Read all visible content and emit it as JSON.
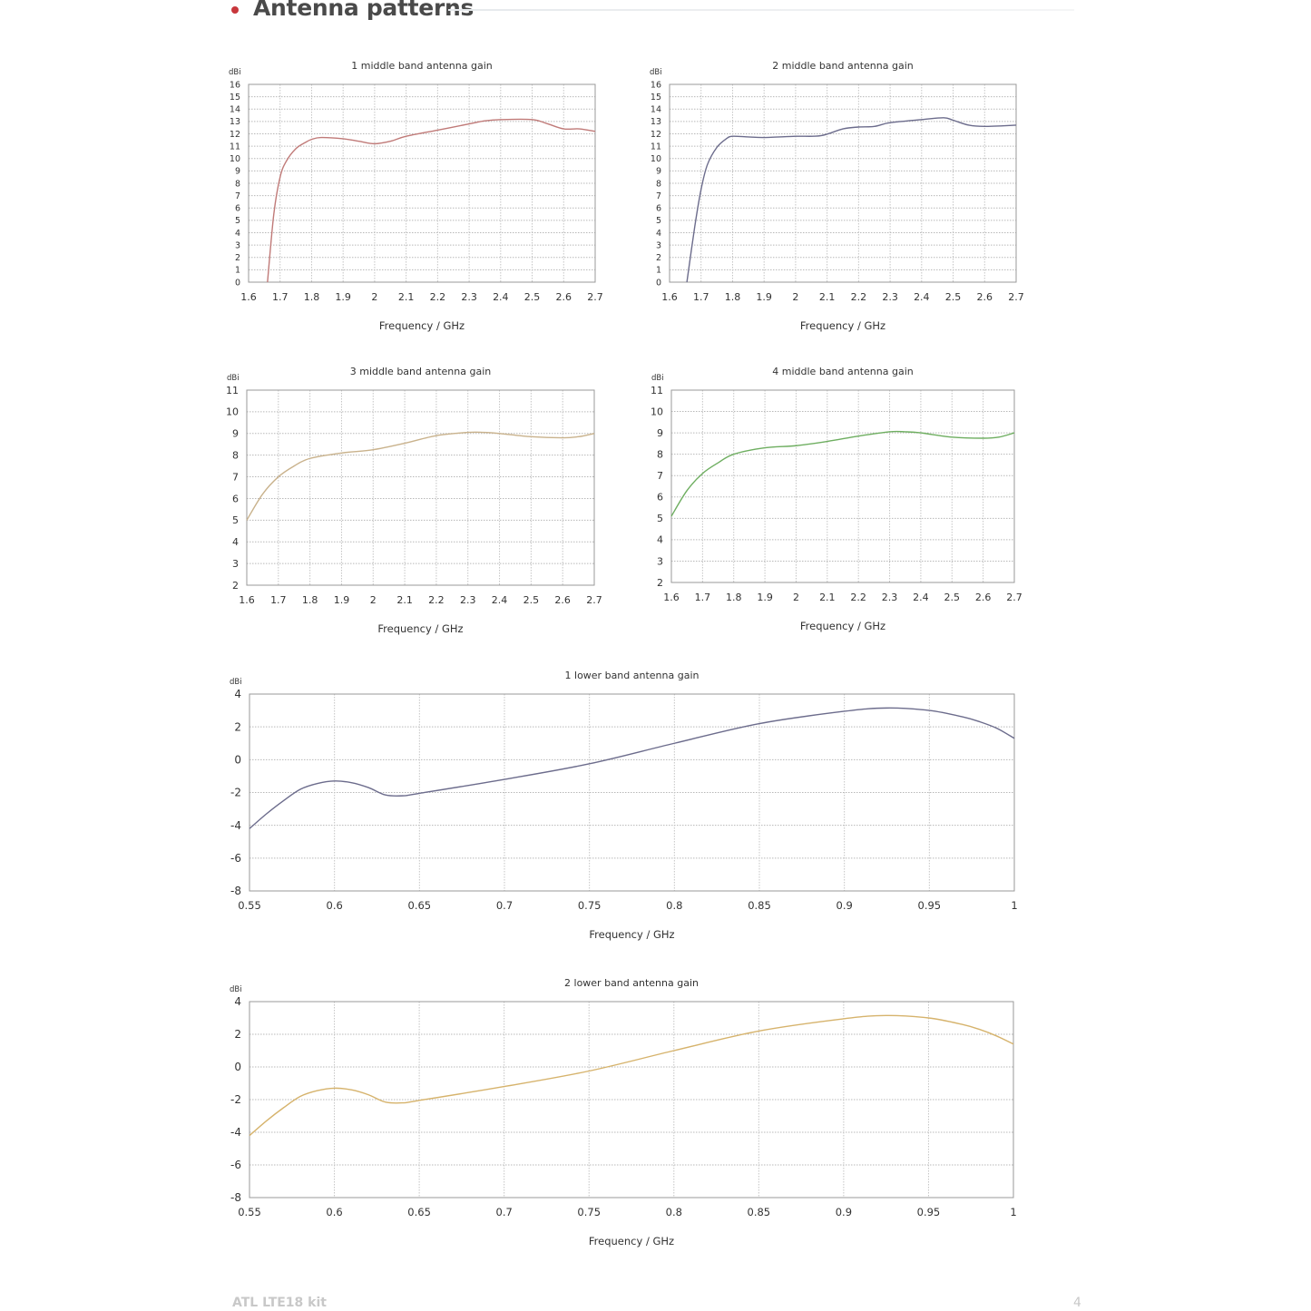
{
  "header": {
    "title": "Antenna patterns",
    "accent_color": "#c8373c"
  },
  "footer": {
    "product": "ATL LTE18 kit",
    "page_number": "4"
  },
  "chart_data": [
    {
      "type": "line",
      "title": "1 middle band antenna gain",
      "xlabel": "Frequency / GHz",
      "ylabel": "dBi",
      "xlim": [
        1.6,
        2.7
      ],
      "ylim": [
        0,
        16
      ],
      "xticks": [
        "1.6",
        "1.7",
        "1.8",
        "1.9",
        "2",
        "2.1",
        "2.2",
        "2.3",
        "2.4",
        "2.5",
        "2.6",
        "2.7"
      ],
      "yticks": [
        "0",
        "1",
        "2",
        "3",
        "4",
        "5",
        "6",
        "7",
        "8",
        "9",
        "10",
        "11",
        "12",
        "13",
        "14",
        "15",
        "16"
      ],
      "grid": true,
      "color": "#c07a78",
      "x": [
        1.66,
        1.68,
        1.7,
        1.72,
        1.75,
        1.78,
        1.8,
        1.83,
        1.9,
        1.95,
        2.0,
        2.05,
        2.1,
        2.2,
        2.3,
        2.35,
        2.4,
        2.5,
        2.55,
        2.6,
        2.65,
        2.7
      ],
      "y": [
        0,
        5.5,
        8.5,
        9.8,
        10.8,
        11.3,
        11.55,
        11.7,
        11.6,
        11.4,
        11.2,
        11.4,
        11.8,
        12.3,
        12.8,
        13.05,
        13.15,
        13.15,
        12.8,
        12.4,
        12.4,
        12.2
      ]
    },
    {
      "type": "line",
      "title": "2 middle band antenna gain",
      "xlabel": "Frequency / GHz",
      "ylabel": "dBi",
      "xlim": [
        1.6,
        2.7
      ],
      "ylim": [
        0,
        16
      ],
      "xticks": [
        "1.6",
        "1.7",
        "1.8",
        "1.9",
        "2",
        "2.1",
        "2.2",
        "2.3",
        "2.4",
        "2.5",
        "2.6",
        "2.7"
      ],
      "yticks": [
        "0",
        "1",
        "2",
        "3",
        "4",
        "5",
        "6",
        "7",
        "8",
        "9",
        "10",
        "11",
        "12",
        "13",
        "14",
        "15",
        "16"
      ],
      "grid": true,
      "color": "#6c6c8c",
      "x": [
        1.655,
        1.68,
        1.7,
        1.72,
        1.75,
        1.78,
        1.8,
        1.85,
        1.9,
        2.0,
        2.08,
        2.15,
        2.2,
        2.25,
        2.3,
        2.4,
        2.47,
        2.5,
        2.55,
        2.6,
        2.7
      ],
      "y": [
        0,
        4.5,
        7.5,
        9.5,
        10.9,
        11.6,
        11.8,
        11.75,
        11.7,
        11.8,
        11.85,
        12.4,
        12.55,
        12.6,
        12.9,
        13.15,
        13.3,
        13.1,
        12.7,
        12.6,
        12.7
      ]
    },
    {
      "type": "line",
      "title": "3 middle band antenna gain",
      "xlabel": "Frequency / GHz",
      "ylabel": "dBi",
      "xlim": [
        1.6,
        2.7
      ],
      "ylim": [
        2,
        11
      ],
      "xticks": [
        "1.6",
        "1.7",
        "1.8",
        "1.9",
        "2",
        "2.1",
        "2.2",
        "2.3",
        "2.4",
        "2.5",
        "2.6",
        "2.7"
      ],
      "yticks": [
        "2",
        "3",
        "4",
        "5",
        "6",
        "7",
        "8",
        "9",
        "10",
        "11"
      ],
      "grid": true,
      "color": "#c9b28c",
      "x": [
        1.6,
        1.65,
        1.7,
        1.75,
        1.8,
        1.9,
        2.0,
        2.1,
        2.2,
        2.3,
        2.35,
        2.4,
        2.5,
        2.6,
        2.65,
        2.7
      ],
      "y": [
        5.0,
        6.2,
        7.0,
        7.5,
        7.85,
        8.1,
        8.25,
        8.55,
        8.9,
        9.05,
        9.05,
        9.0,
        8.85,
        8.8,
        8.85,
        9.0
      ]
    },
    {
      "type": "line",
      "title": "4 middle band antenna gain",
      "xlabel": "Frequency / GHz",
      "ylabel": "dBi",
      "xlim": [
        1.6,
        2.7
      ],
      "ylim": [
        2,
        11
      ],
      "xticks": [
        "1.6",
        "1.7",
        "1.8",
        "1.9",
        "2",
        "2.1",
        "2.2",
        "2.3",
        "2.4",
        "2.5",
        "2.6",
        "2.7"
      ],
      "yticks": [
        "2",
        "3",
        "4",
        "5",
        "6",
        "7",
        "8",
        "9",
        "10",
        "11"
      ],
      "grid": true,
      "color": "#6eae60",
      "x": [
        1.6,
        1.65,
        1.7,
        1.75,
        1.8,
        1.9,
        2.0,
        2.1,
        2.2,
        2.3,
        2.35,
        2.4,
        2.5,
        2.6,
        2.65,
        2.7
      ],
      "y": [
        5.1,
        6.3,
        7.1,
        7.6,
        8.0,
        8.3,
        8.4,
        8.6,
        8.85,
        9.05,
        9.05,
        9.0,
        8.8,
        8.75,
        8.8,
        9.0
      ]
    },
    {
      "type": "line",
      "title": "1 lower band antenna gain",
      "xlabel": "Frequency / GHz",
      "ylabel": "dBi",
      "xlim": [
        0.55,
        1.0
      ],
      "ylim": [
        -8,
        4
      ],
      "xticks": [
        "0.55",
        "0.6",
        "0.65",
        "0.7",
        "0.75",
        "0.8",
        "0.85",
        "0.9",
        "0.95",
        "1"
      ],
      "yticks": [
        "-8",
        "-6",
        "-4",
        "-2",
        "0",
        "2",
        "4"
      ],
      "grid": true,
      "color": "#6c6c8c",
      "x": [
        0.55,
        0.56,
        0.57,
        0.58,
        0.59,
        0.6,
        0.61,
        0.62,
        0.63,
        0.64,
        0.65,
        0.7,
        0.75,
        0.8,
        0.85,
        0.9,
        0.925,
        0.95,
        0.97,
        0.98,
        0.99,
        1.0
      ],
      "y": [
        -4.2,
        -3.3,
        -2.5,
        -1.8,
        -1.45,
        -1.3,
        -1.4,
        -1.7,
        -2.15,
        -2.2,
        -2.05,
        -1.2,
        -0.25,
        1.0,
        2.2,
        2.95,
        3.15,
        3.0,
        2.6,
        2.3,
        1.9,
        1.3
      ]
    },
    {
      "type": "line",
      "title": "2 lower band antenna gain",
      "xlabel": "Frequency / GHz",
      "ylabel": "dBi",
      "xlim": [
        0.55,
        1.0
      ],
      "ylim": [
        -8,
        4
      ],
      "xticks": [
        "0.55",
        "0.6",
        "0.65",
        "0.7",
        "0.75",
        "0.8",
        "0.85",
        "0.9",
        "0.95",
        "1"
      ],
      "yticks": [
        "-8",
        "-6",
        "-4",
        "-2",
        "0",
        "2",
        "4"
      ],
      "grid": true,
      "color": "#d6b36c",
      "x": [
        0.55,
        0.56,
        0.57,
        0.58,
        0.59,
        0.6,
        0.61,
        0.62,
        0.63,
        0.64,
        0.65,
        0.7,
        0.75,
        0.8,
        0.85,
        0.9,
        0.925,
        0.95,
        0.97,
        0.98,
        0.99,
        1.0
      ],
      "y": [
        -4.2,
        -3.3,
        -2.5,
        -1.8,
        -1.45,
        -1.3,
        -1.4,
        -1.7,
        -2.15,
        -2.2,
        -2.05,
        -1.2,
        -0.25,
        1.0,
        2.2,
        2.95,
        3.15,
        3.0,
        2.6,
        2.3,
        1.9,
        1.4
      ]
    }
  ]
}
